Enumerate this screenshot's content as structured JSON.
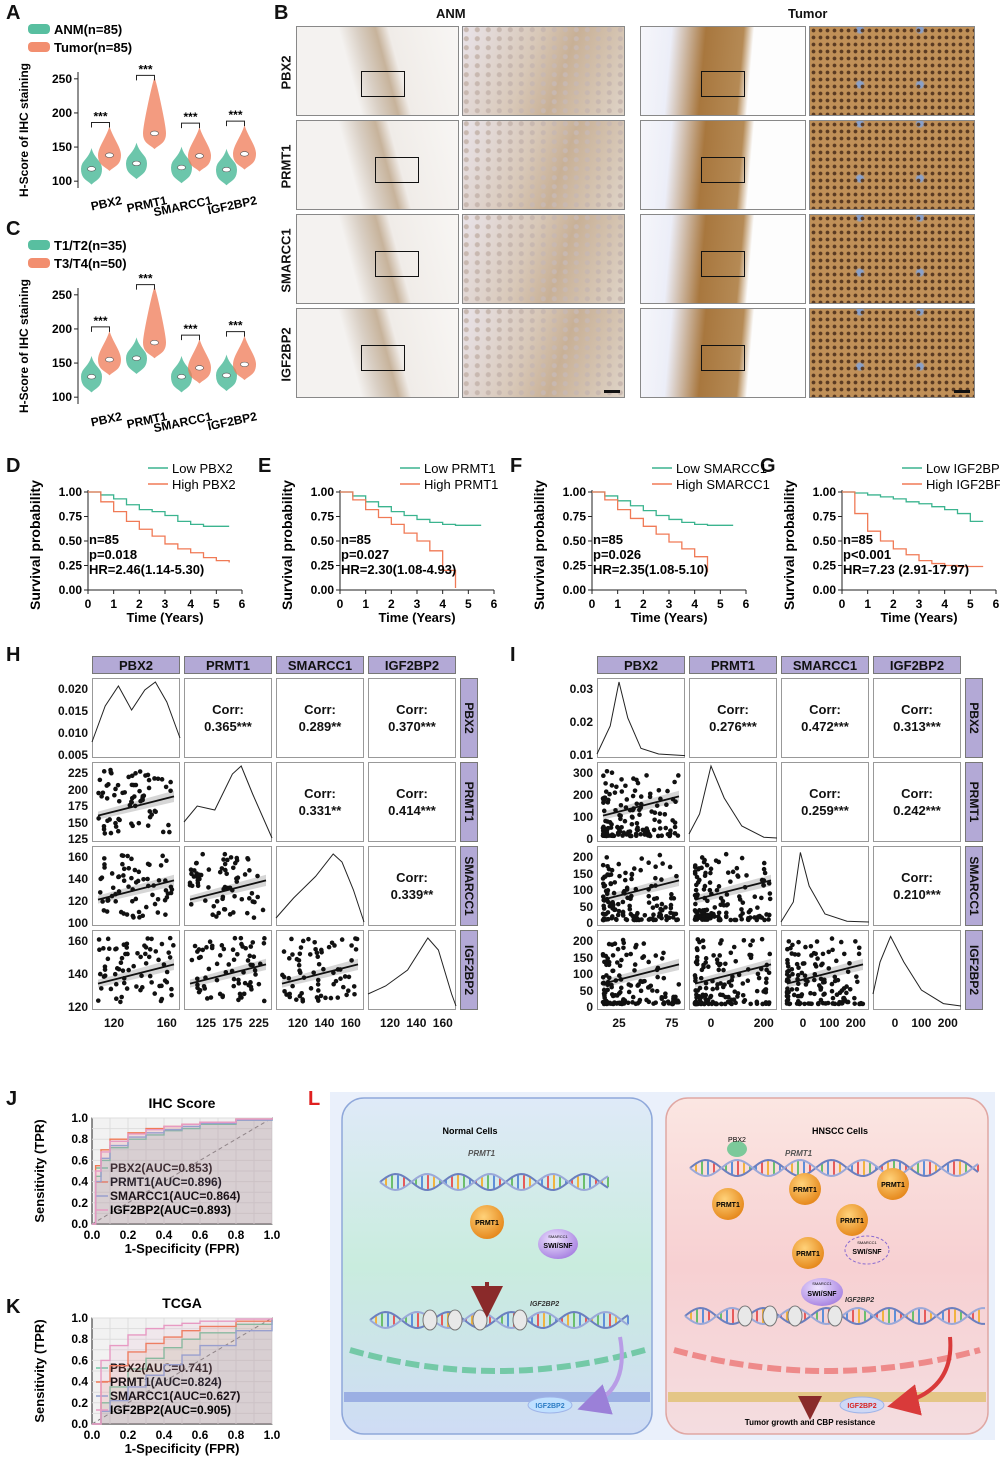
{
  "panel_labels": {
    "A": "A",
    "B": "B",
    "C": "C",
    "D": "D",
    "E": "E",
    "F": "F",
    "G": "G",
    "H": "H",
    "I": "I",
    "J": "J",
    "K": "K",
    "L": "L"
  },
  "colors": {
    "green": "#3bb48f",
    "orange": "#f07a56",
    "purple": "#b3a9d6",
    "ihc_brown": "#b58a55"
  },
  "chart_data": [
    {
      "id": "A",
      "type": "violin",
      "ylabel": "H-Score of IHC staining",
      "ylim": [
        90,
        260
      ],
      "yticks": [
        "100",
        "150",
        "200",
        "250"
      ],
      "categories": [
        "PBX2",
        "PRMT1",
        "SMARCC1",
        "IGF2BP2"
      ],
      "series": [
        {
          "name": "ANM(n=85)",
          "medians": [
            118,
            126,
            120,
            117
          ]
        },
        {
          "name": "Tumor(n=85)",
          "medians": [
            138,
            170,
            137,
            140
          ]
        }
      ],
      "significance": [
        "***",
        "***",
        "***",
        "***"
      ]
    },
    {
      "id": "C",
      "type": "violin",
      "ylabel": "H-Score of IHC staining",
      "ylim": [
        90,
        260
      ],
      "yticks": [
        "100",
        "150",
        "200",
        "250"
      ],
      "categories": [
        "PBX2",
        "PRMT1",
        "SMARCC1",
        "IGF2BP2"
      ],
      "series": [
        {
          "name": "T1/T2(n=35)",
          "medians": [
            130,
            157,
            130,
            132
          ]
        },
        {
          "name": "T3/T4(n=50)",
          "medians": [
            155,
            180,
            143,
            148
          ]
        }
      ],
      "significance": [
        "***",
        "***",
        "***",
        "***"
      ]
    },
    {
      "id": "D",
      "type": "line",
      "ylabel": "Survival probability",
      "xlabel": "Time (Years)",
      "xticks": [
        "0",
        "1",
        "2",
        "3",
        "4",
        "5",
        "6"
      ],
      "yticks": [
        "0.00",
        "0.25",
        "0.50",
        "0.75",
        "1.00"
      ],
      "series": [
        {
          "name": "Low PBX2",
          "x": [
            0,
            0.5,
            1,
            1.5,
            2,
            2.5,
            3,
            3.5,
            4,
            4.5,
            5,
            5.5
          ],
          "y": [
            1,
            0.97,
            0.93,
            0.87,
            0.82,
            0.8,
            0.76,
            0.7,
            0.67,
            0.65,
            0.65,
            0.65
          ]
        },
        {
          "name": "High PBX2",
          "x": [
            0,
            0.5,
            1,
            1.5,
            2,
            2.5,
            3,
            3.5,
            4,
            4.5,
            5,
            5.5
          ],
          "y": [
            1,
            0.9,
            0.8,
            0.7,
            0.62,
            0.55,
            0.47,
            0.42,
            0.38,
            0.33,
            0.3,
            0.28
          ]
        }
      ],
      "stats": [
        "n=85",
        "p=0.018",
        "HR=2.46(1.14-5.30)"
      ]
    },
    {
      "id": "E",
      "type": "line",
      "ylabel": "Survival probability",
      "xlabel": "Time (Years)",
      "xticks": [
        "0",
        "1",
        "2",
        "3",
        "4",
        "5",
        "6"
      ],
      "yticks": [
        "0.00",
        "0.25",
        "0.50",
        "0.75",
        "1.00"
      ],
      "series": [
        {
          "name": "Low PRMT1",
          "x": [
            0,
            0.5,
            1,
            1.5,
            2,
            2.5,
            3,
            3.5,
            4,
            4.5,
            5,
            5.5
          ],
          "y": [
            1,
            0.96,
            0.9,
            0.85,
            0.8,
            0.76,
            0.72,
            0.69,
            0.67,
            0.66,
            0.66,
            0.66
          ]
        },
        {
          "name": "High PRMT1",
          "x": [
            0,
            0.5,
            1,
            1.5,
            2,
            2.5,
            3,
            3.5,
            4,
            4.5
          ],
          "y": [
            1,
            0.92,
            0.82,
            0.74,
            0.67,
            0.58,
            0.5,
            0.4,
            0.2,
            0.02
          ]
        }
      ],
      "stats": [
        "n=85",
        "p=0.027",
        "HR=2.30(1.08-4.93)"
      ]
    },
    {
      "id": "F",
      "type": "line",
      "ylabel": "Survival probability",
      "xlabel": "Time (Years)",
      "xticks": [
        "0",
        "1",
        "2",
        "3",
        "4",
        "5",
        "6"
      ],
      "yticks": [
        "0.00",
        "0.25",
        "0.50",
        "0.75",
        "1.00"
      ],
      "series": [
        {
          "name": "Low SMARCC1",
          "x": [
            0,
            0.5,
            1,
            1.5,
            2,
            2.5,
            3,
            3.5,
            4,
            4.5,
            5,
            5.5
          ],
          "y": [
            1,
            0.96,
            0.91,
            0.86,
            0.81,
            0.76,
            0.72,
            0.69,
            0.67,
            0.66,
            0.66,
            0.66
          ]
        },
        {
          "name": "High SMARCC1",
          "x": [
            0,
            0.5,
            1,
            1.5,
            2,
            2.5,
            3,
            3.5,
            4,
            4.5
          ],
          "y": [
            1,
            0.92,
            0.82,
            0.73,
            0.65,
            0.57,
            0.49,
            0.42,
            0.34,
            0.18
          ]
        }
      ],
      "stats": [
        "n=85",
        "p=0.026",
        "HR=2.35(1.08-5.10)"
      ]
    },
    {
      "id": "G",
      "type": "line",
      "ylabel": "Survival probability",
      "xlabel": "Time (Years)",
      "xticks": [
        "0",
        "1",
        "2",
        "3",
        "4",
        "5",
        "6"
      ],
      "yticks": [
        "0.00",
        "0.25",
        "0.50",
        "0.75",
        "1.00"
      ],
      "series": [
        {
          "name": "Low IGF2BP2",
          "x": [
            0,
            0.5,
            1,
            1.5,
            2,
            2.5,
            3,
            3.5,
            4,
            4.5,
            5,
            5.5
          ],
          "y": [
            1,
            0.99,
            0.97,
            0.95,
            0.93,
            0.9,
            0.88,
            0.85,
            0.82,
            0.78,
            0.7,
            0.7
          ]
        },
        {
          "name": "High IGF2BP2",
          "x": [
            0,
            0.5,
            1,
            1.5,
            2,
            2.5,
            3,
            3.5,
            4,
            4.5,
            5,
            5.5
          ],
          "y": [
            1,
            0.78,
            0.6,
            0.5,
            0.42,
            0.36,
            0.3,
            0.27,
            0.25,
            0.24,
            0.24,
            0.24
          ]
        }
      ],
      "stats": [
        "n=85",
        "p<0.001",
        "HR=7.23 (2.91-17.97)"
      ]
    },
    {
      "id": "J",
      "type": "line",
      "title": "IHC Score",
      "xlabel": "1-Specificity (FPR)",
      "ylabel": "Sensitivity (TPR)",
      "xticks": [
        "0.0",
        "0.2",
        "0.4",
        "0.6",
        "0.8",
        "1.0"
      ],
      "yticks": [
        "0.0",
        "0.2",
        "0.4",
        "0.6",
        "0.8",
        "1.0"
      ],
      "series": [
        {
          "name": "PBX2(AUC=0.853)",
          "color": "#6fc7a6",
          "x": [
            0,
            0.02,
            0.05,
            0.1,
            0.2,
            0.3,
            0.4,
            0.5,
            0.6,
            0.8,
            1
          ],
          "y": [
            0,
            0.45,
            0.6,
            0.72,
            0.8,
            0.84,
            0.88,
            0.9,
            0.94,
            0.98,
            1
          ]
        },
        {
          "name": "PRMT1(AUC=0.896)",
          "color": "#f07a56",
          "x": [
            0,
            0.02,
            0.05,
            0.1,
            0.2,
            0.3,
            0.4,
            0.5,
            0.6,
            0.8,
            1
          ],
          "y": [
            0,
            0.55,
            0.7,
            0.8,
            0.86,
            0.9,
            0.92,
            0.94,
            0.96,
            0.99,
            1
          ]
        },
        {
          "name": "SMARCC1(AUC=0.864)",
          "color": "#8fa0d0",
          "x": [
            0,
            0.02,
            0.05,
            0.1,
            0.2,
            0.3,
            0.4,
            0.5,
            0.6,
            0.8,
            1
          ],
          "y": [
            0,
            0.4,
            0.62,
            0.74,
            0.82,
            0.86,
            0.89,
            0.92,
            0.95,
            0.98,
            1
          ]
        },
        {
          "name": "IGF2BP2(AUC=0.893)",
          "color": "#e79ac3",
          "x": [
            0,
            0.02,
            0.05,
            0.1,
            0.2,
            0.3,
            0.4,
            0.5,
            0.6,
            0.8,
            1
          ],
          "y": [
            0,
            0.5,
            0.68,
            0.78,
            0.85,
            0.89,
            0.92,
            0.94,
            0.96,
            0.99,
            1
          ]
        }
      ]
    },
    {
      "id": "K",
      "type": "line",
      "title": "TCGA",
      "xlabel": "1-Specificity (FPR)",
      "ylabel": "Sensitivity (TPR)",
      "xticks": [
        "0.0",
        "0.2",
        "0.4",
        "0.6",
        "0.8",
        "1.0"
      ],
      "yticks": [
        "0.0",
        "0.2",
        "0.4",
        "0.6",
        "0.8",
        "1.0"
      ],
      "series": [
        {
          "name": "PBX2(AUC=0.741)",
          "color": "#6fc7a6",
          "x": [
            0,
            0.05,
            0.1,
            0.2,
            0.3,
            0.4,
            0.5,
            0.6,
            0.8,
            1
          ],
          "y": [
            0,
            0.2,
            0.35,
            0.52,
            0.62,
            0.72,
            0.8,
            0.86,
            0.94,
            1
          ]
        },
        {
          "name": "PRMT1(AUC=0.824)",
          "color": "#f07a56",
          "x": [
            0,
            0.05,
            0.1,
            0.2,
            0.3,
            0.4,
            0.5,
            0.6,
            0.8,
            1
          ],
          "y": [
            0,
            0.4,
            0.55,
            0.68,
            0.76,
            0.82,
            0.88,
            0.92,
            0.97,
            1
          ]
        },
        {
          "name": "SMARCC1(AUC=0.627)",
          "color": "#8fa0d0",
          "x": [
            0,
            0.05,
            0.1,
            0.2,
            0.3,
            0.4,
            0.5,
            0.6,
            0.8,
            1
          ],
          "y": [
            0,
            0.12,
            0.22,
            0.35,
            0.46,
            0.56,
            0.65,
            0.74,
            0.88,
            1
          ]
        },
        {
          "name": "IGF2BP2(AUC=0.905)",
          "color": "#e79ac3",
          "x": [
            0,
            0.05,
            0.1,
            0.2,
            0.3,
            0.4,
            0.5,
            0.6,
            0.8,
            1
          ],
          "y": [
            0,
            0.6,
            0.74,
            0.84,
            0.9,
            0.93,
            0.95,
            0.97,
            0.99,
            1
          ]
        }
      ]
    }
  ],
  "panelB": {
    "col_headers": [
      "ANM",
      "Tumor"
    ],
    "rows": [
      "PBX2",
      "PRMT1",
      "SMARCC1",
      "IGF2BP2"
    ]
  },
  "panelH": {
    "vars": [
      "PBX2",
      "PRMT1",
      "SMARCC1",
      "IGF2BP2"
    ],
    "corr": [
      {
        "r": 0,
        "c": 1,
        "label": "Corr:",
        "value": "0.365***"
      },
      {
        "r": 0,
        "c": 2,
        "label": "Corr:",
        "value": "0.289**"
      },
      {
        "r": 0,
        "c": 3,
        "label": "Corr:",
        "value": "0.370***"
      },
      {
        "r": 1,
        "c": 2,
        "label": "Corr:",
        "value": "0.331**"
      },
      {
        "r": 1,
        "c": 3,
        "label": "Corr:",
        "value": "0.414***"
      },
      {
        "r": 2,
        "c": 3,
        "label": "Corr:",
        "value": "0.339**"
      }
    ],
    "yticks": [
      [
        "0.020",
        "0.015",
        "0.010",
        "0.005"
      ],
      [
        "225",
        "200",
        "175",
        "150",
        "125"
      ],
      [
        "160",
        "140",
        "120",
        "100"
      ],
      [
        "160",
        "140",
        "120"
      ]
    ],
    "xticks": [
      [
        "120",
        "160"
      ],
      [
        "125",
        "175",
        "225"
      ],
      [
        "120",
        "140",
        "160"
      ],
      [
        "120",
        "140",
        "160"
      ]
    ]
  },
  "panelI": {
    "vars": [
      "PBX2",
      "PRMT1",
      "SMARCC1",
      "IGF2BP2"
    ],
    "corr": [
      {
        "r": 0,
        "c": 1,
        "label": "Corr:",
        "value": "0.276***"
      },
      {
        "r": 0,
        "c": 2,
        "label": "Corr:",
        "value": "0.472***"
      },
      {
        "r": 0,
        "c": 3,
        "label": "Corr:",
        "value": "0.313***"
      },
      {
        "r": 1,
        "c": 2,
        "label": "Corr:",
        "value": "0.259***"
      },
      {
        "r": 1,
        "c": 3,
        "label": "Corr:",
        "value": "0.242***"
      },
      {
        "r": 2,
        "c": 3,
        "label": "Corr:",
        "value": "0.210***"
      }
    ],
    "yticks": [
      [
        "0.03",
        "0.02",
        "0.01"
      ],
      [
        "300",
        "200",
        "100",
        "0"
      ],
      [
        "200",
        "150",
        "100",
        "50",
        "0"
      ],
      [
        "200",
        "150",
        "100",
        "50",
        "0"
      ]
    ],
    "xticks": [
      [
        "25",
        "75"
      ],
      [
        "0",
        "200"
      ],
      [
        "0",
        "100",
        "200"
      ],
      [
        "0",
        "100",
        "200"
      ]
    ]
  },
  "panelL": {
    "normal_title": "Normal Cells",
    "hnscc_title": "HNSCC Cells",
    "prmt1_gene": "PRMT1",
    "prmt1_protein": "PRMT1",
    "smarcc1": "SMARCC1",
    "swisnf": "SWI/SNF",
    "igf2bp2_gene": "IGF2BP2",
    "igf2bp2_protein": "IGF2BP2",
    "pbx2": "PBX2",
    "bottom_text": "Tumor growth and CBP resistance"
  }
}
